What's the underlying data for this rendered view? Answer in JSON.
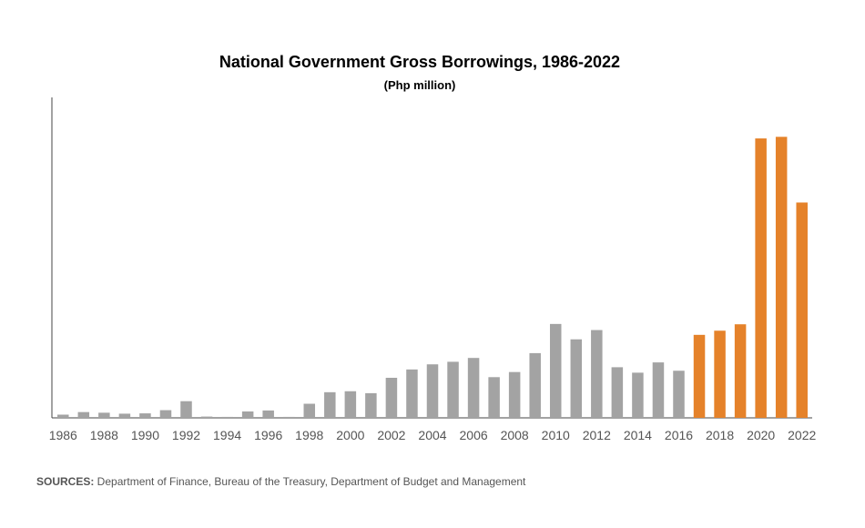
{
  "chart_data": {
    "type": "bar",
    "title": "National Government Gross Borrowings, 1986-2022",
    "subtitle": "(Php million)",
    "xlabel": "",
    "ylabel": "",
    "categories": [
      "1986",
      "1987",
      "1988",
      "1989",
      "1990",
      "1991",
      "1992",
      "1993",
      "1994",
      "1995",
      "1996",
      "1997",
      "1998",
      "1999",
      "2000",
      "2001",
      "2002",
      "2003",
      "2004",
      "2005",
      "2006",
      "2007",
      "2008",
      "2009",
      "2010",
      "2011",
      "2012",
      "2013",
      "2014",
      "2015",
      "2016",
      "2017",
      "2018",
      "2019",
      "2020",
      "2021",
      "2022"
    ],
    "tick_labels": [
      "1986",
      "1988",
      "1990",
      "1992",
      "1994",
      "1996",
      "1998",
      "2000",
      "2002",
      "2004",
      "2006",
      "2008",
      "2010",
      "2012",
      "2014",
      "2016",
      "2018",
      "2020",
      "2022"
    ],
    "values": [
      10,
      18,
      16,
      13,
      14,
      24,
      52,
      4,
      3,
      20,
      23,
      3,
      44,
      80,
      83,
      77,
      125,
      151,
      167,
      175,
      187,
      127,
      143,
      202,
      293,
      245,
      274,
      158,
      141,
      173,
      147,
      259,
      272,
      292,
      872,
      877,
      672
    ],
    "ylim": [
      0,
      1000
    ],
    "grid": false,
    "legend": "none",
    "colors": {
      "historical": "#a3a3a3",
      "recent": "#e5822a"
    },
    "highlight_from": "2017"
  },
  "source": {
    "label": "SOURCES:",
    "text": " Department of Finance, Bureau of the Treasury, Department of Budget and Management"
  }
}
